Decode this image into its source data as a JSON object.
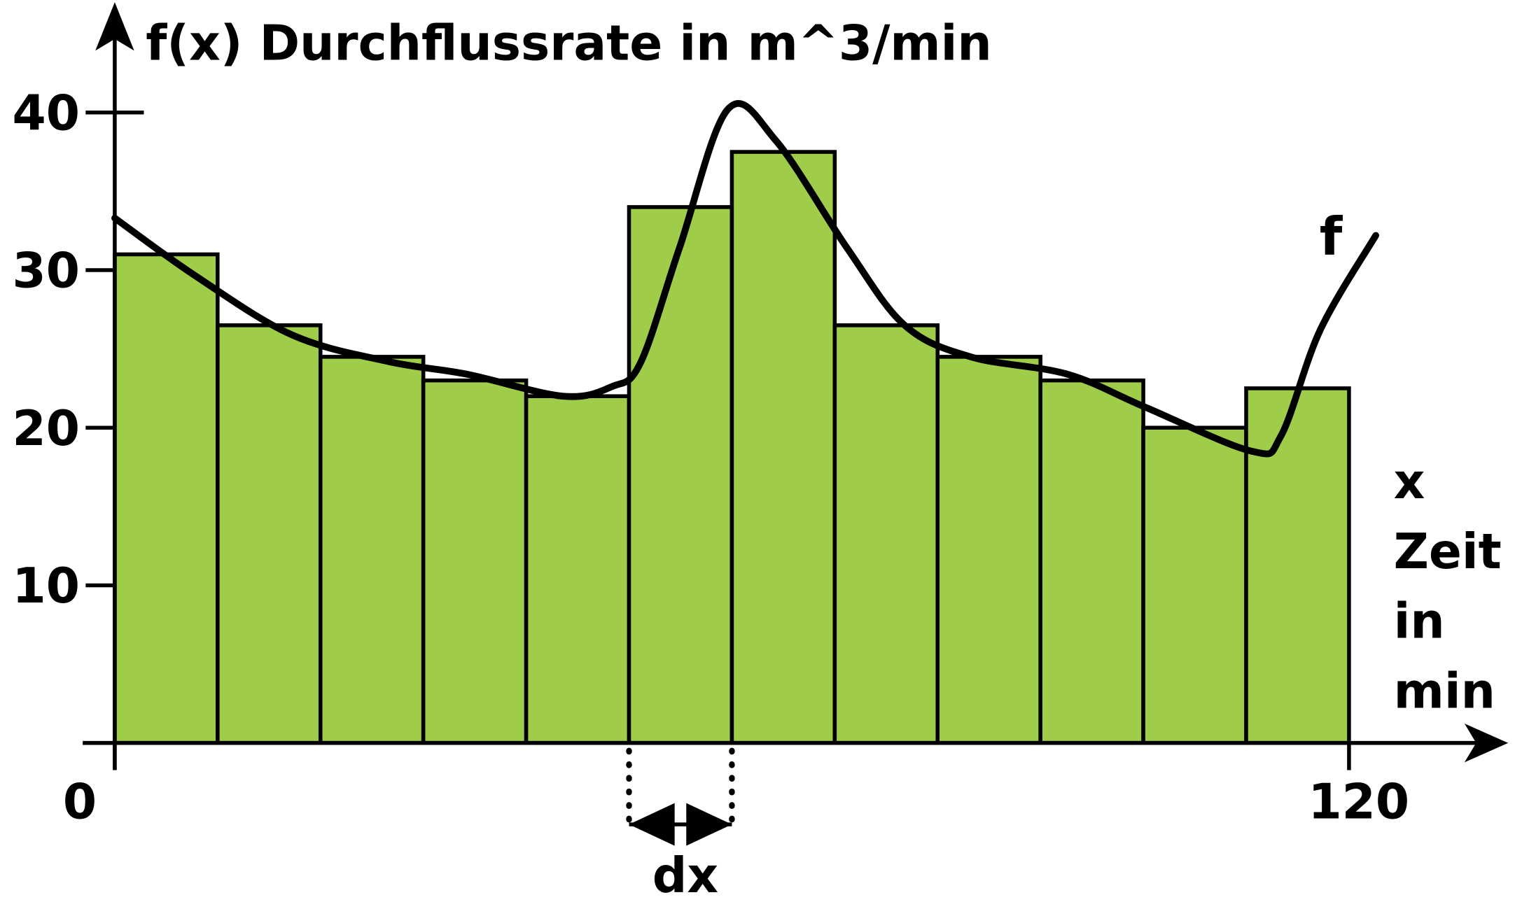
{
  "chart_data": {
    "type": "histogram",
    "title": "f(x) Durchflussrate in m^3/min",
    "bins": [
      0,
      10,
      20,
      30,
      40,
      50,
      60,
      70,
      80,
      90,
      100,
      110,
      120
    ],
    "values": [
      31,
      26.5,
      24.5,
      23,
      22,
      34,
      37.5,
      26.5,
      24.5,
      23,
      20,
      22.5
    ],
    "color": "#9fcd4a",
    "curve": {
      "name": "f",
      "x": [
        0,
        7.7,
        17.2,
        26.6,
        34.2,
        43.6,
        48.3,
        51.1,
        54.9,
        59.6,
        64.3,
        71.2,
        76.8,
        83.2,
        92.6,
        100.2,
        110.6,
        113.4,
        117.2,
        122.6
      ],
      "values": [
        33.3,
        29.7,
        25.9,
        24.2,
        23.4,
        22.0,
        22.6,
        24.1,
        31.4,
        40.2,
        38.2,
        31.4,
        26.5,
        24.5,
        23.4,
        21.3,
        18.5,
        19.5,
        26.2,
        32.2
      ]
    },
    "annotation": "dx",
    "x_label": [
      "x",
      "Zeit",
      "in",
      "min"
    ],
    "xlim": [
      0,
      135
    ],
    "ylim": [
      0,
      47
    ],
    "xticks": [
      0,
      120
    ],
    "yticks": [
      10,
      20,
      30,
      40
    ]
  }
}
